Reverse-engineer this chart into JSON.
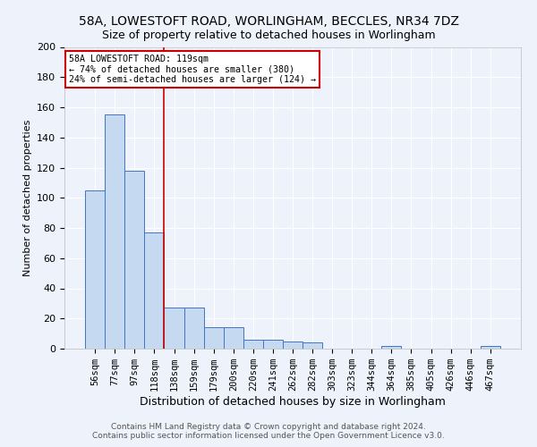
{
  "title": "58A, LOWESTOFT ROAD, WORLINGHAM, BECCLES, NR34 7DZ",
  "subtitle": "Size of property relative to detached houses in Worlingham",
  "xlabel": "Distribution of detached houses by size in Worlingham",
  "ylabel": "Number of detached properties",
  "categories": [
    "56sqm",
    "77sqm",
    "97sqm",
    "118sqm",
    "138sqm",
    "159sqm",
    "179sqm",
    "200sqm",
    "220sqm",
    "241sqm",
    "262sqm",
    "282sqm",
    "303sqm",
    "323sqm",
    "344sqm",
    "364sqm",
    "385sqm",
    "405sqm",
    "426sqm",
    "446sqm",
    "467sqm"
  ],
  "values": [
    105,
    155,
    118,
    77,
    27,
    27,
    14,
    14,
    6,
    6,
    5,
    4,
    0,
    0,
    0,
    2,
    0,
    0,
    0,
    0,
    2
  ],
  "bar_color": "#c5d9f1",
  "bar_edge_color": "#4472c4",
  "red_line_x": 3.5,
  "annotation_line1": "58A LOWESTOFT ROAD: 119sqm",
  "annotation_line2": "← 74% of detached houses are smaller (380)",
  "annotation_line3": "24% of semi-detached houses are larger (124) →",
  "annotation_box_color": "#ffffff",
  "annotation_box_edge": "#cc0000",
  "red_line_color": "#cc0000",
  "background_color": "#eef2fb",
  "grid_color": "#ffffff",
  "footer_line1": "Contains HM Land Registry data © Crown copyright and database right 2024.",
  "footer_line2": "Contains public sector information licensed under the Open Government Licence v3.0.",
  "title_fontsize": 10,
  "subtitle_fontsize": 9,
  "ylabel_fontsize": 8,
  "xlabel_fontsize": 9,
  "tick_fontsize": 7.5,
  "ytick_fontsize": 8,
  "footer_fontsize": 6.5,
  "ylim": [
    0,
    200
  ],
  "yticks": [
    0,
    20,
    40,
    60,
    80,
    100,
    120,
    140,
    160,
    180,
    200
  ]
}
